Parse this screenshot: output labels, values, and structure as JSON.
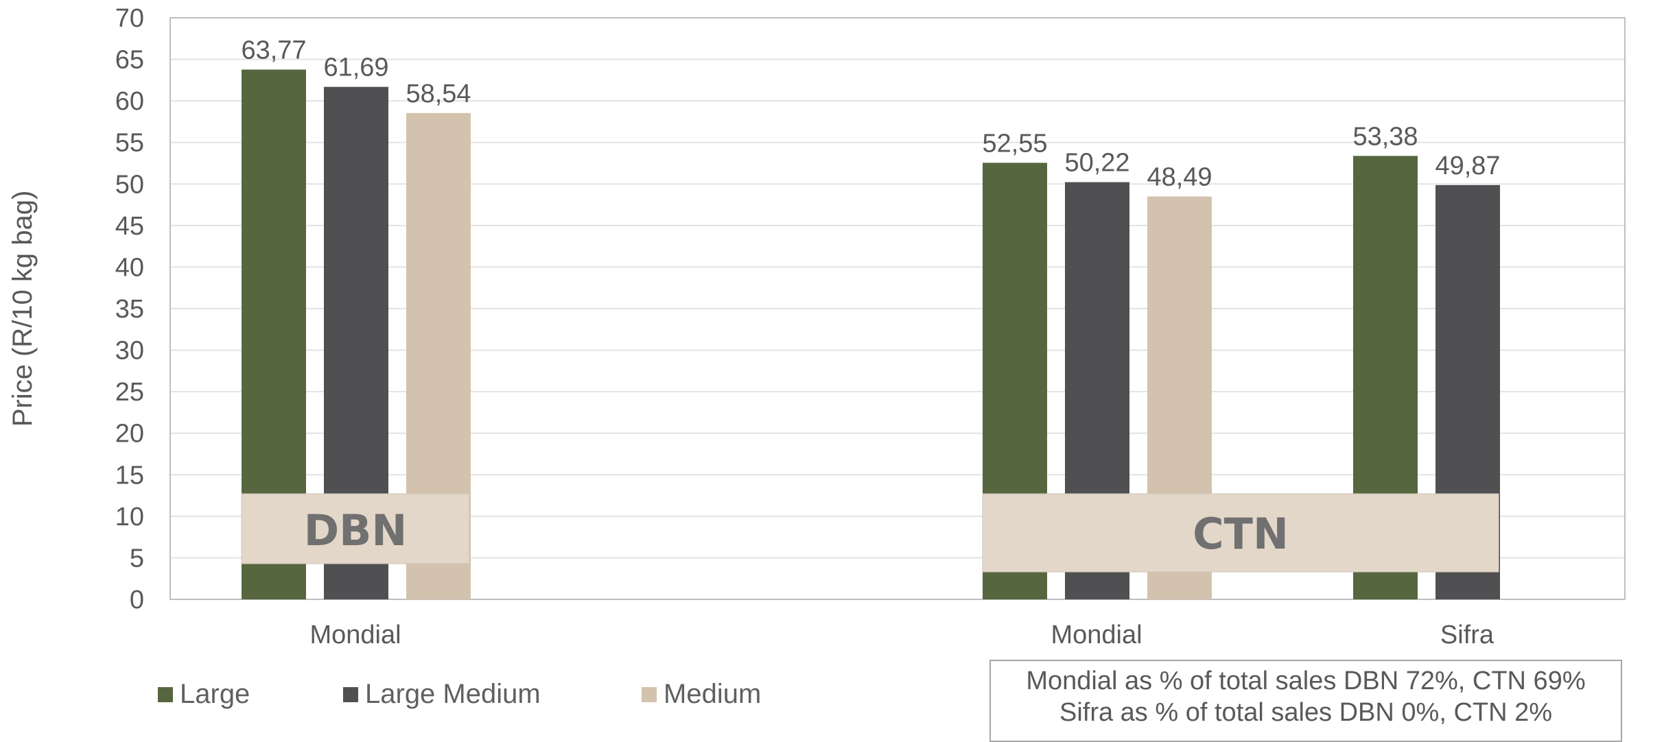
{
  "chart_data": {
    "type": "bar",
    "ylabel": "Price (R/10 kg bag)",
    "ylim": [
      0,
      70
    ],
    "ytick_step": 5,
    "grid": true,
    "groups": [
      {
        "label": "Mondial",
        "region": "DBN",
        "values": {
          "Large": 63.77,
          "Large Medium": 61.69,
          "Medium": 58.54
        }
      },
      {
        "label": "Mondial",
        "region": "CTN",
        "values": {
          "Large": 52.55,
          "Large Medium": 50.22,
          "Medium": 48.49
        }
      },
      {
        "label": "Sifra",
        "region": "CTN",
        "values": {
          "Large": 53.38,
          "Large Medium": 49.87
        }
      }
    ],
    "series": [
      {
        "name": "Large",
        "color": "#56663f"
      },
      {
        "name": "Large Medium",
        "color": "#505052"
      },
      {
        "name": "Medium",
        "color": "#d3c2ad"
      }
    ],
    "region_labels": [
      "DBN",
      "CTN"
    ],
    "decimal_separator": ",",
    "legend_position": "bottom-left",
    "notes": [
      "Mondial as % of total sales DBN 72%, CTN 69%",
      "Sifra as % of total sales DBN 0%, CTN 2%"
    ]
  }
}
